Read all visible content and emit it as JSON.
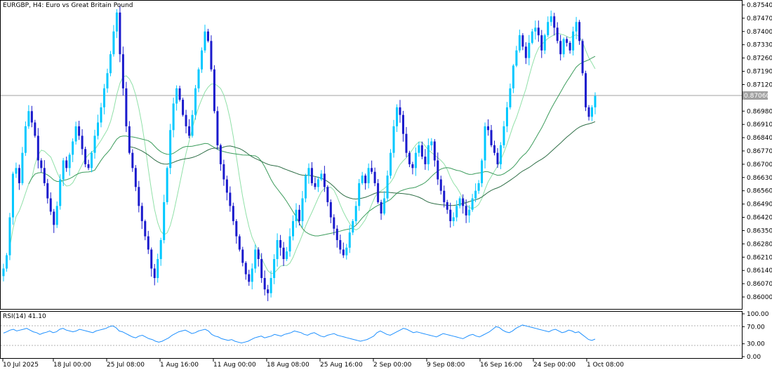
{
  "chart_title": "EURGBP, H4:  Euro vs Great Britain Pound",
  "rsi_label": "RSI(14) 41.10",
  "current_price_label": "0.87060",
  "price_axis": [
    "0.87540",
    "0.87470",
    "0.87400",
    "0.87330",
    "0.87260",
    "0.87190",
    "0.87120",
    "0.87060",
    "0.86980",
    "0.86910",
    "0.86840",
    "0.86770",
    "0.86700",
    "0.86630",
    "0.86560",
    "0.86490",
    "0.86420",
    "0.86350",
    "0.86280",
    "0.86210",
    "0.86140",
    "0.86070",
    "0.86000"
  ],
  "rsi_axis": [
    "100.00",
    "70.00",
    "30.00",
    "0.00"
  ],
  "time_axis": [
    "10 Jul 2025",
    "18 Jul 00:00",
    "25 Jul 08:00",
    "1 Aug 16:00",
    "11 Aug 00:00",
    "18 Aug 08:00",
    "25 Aug 16:00",
    "2 Sep 00:00",
    "9 Sep 08:00",
    "16 Sep 16:00",
    "24 Sep 00:00",
    "1 Oct 08:00"
  ],
  "colors": {
    "bull": "#00c8ff",
    "bear": "#1a1acc",
    "ma_fast": "#90e0a8",
    "ma_mid": "#3c9c5c",
    "ma_slow": "#2e6e46",
    "rsi_line": "#1e90ff",
    "grid_level": "#a0a0a0",
    "current_price_bg": "#a0a0a0"
  },
  "chart_data": {
    "type": "candlestick",
    "symbol": "EURGBP",
    "timeframe": "H4",
    "ylim": [
      0.8596,
      0.8756
    ],
    "current_price": 0.8706,
    "rsi": {
      "period": 14,
      "value": 41.1,
      "ylim": [
        0,
        100
      ],
      "levels": [
        30,
        70
      ]
    },
    "closes": [
      0.8615,
      0.8622,
      0.8642,
      0.8665,
      0.8668,
      0.866,
      0.8676,
      0.869,
      0.8698,
      0.8692,
      0.8685,
      0.8672,
      0.8668,
      0.866,
      0.8652,
      0.8645,
      0.8638,
      0.8648,
      0.8662,
      0.8672,
      0.8668,
      0.8675,
      0.8682,
      0.869,
      0.8685,
      0.8678,
      0.867,
      0.8668,
      0.8676,
      0.8685,
      0.8692,
      0.87,
      0.871,
      0.8718,
      0.8728,
      0.874,
      0.875,
      0.8728,
      0.871,
      0.869,
      0.8676,
      0.8668,
      0.8658,
      0.8648,
      0.864,
      0.8632,
      0.8625,
      0.8615,
      0.861,
      0.862,
      0.863,
      0.865,
      0.8668,
      0.8688,
      0.8702,
      0.871,
      0.8704,
      0.8696,
      0.869,
      0.8685,
      0.8696,
      0.871,
      0.872,
      0.873,
      0.874,
      0.8735,
      0.872,
      0.8698,
      0.868,
      0.867,
      0.8662,
      0.8655,
      0.8648,
      0.864,
      0.8632,
      0.8625,
      0.8618,
      0.8612,
      0.8608,
      0.8615,
      0.8625,
      0.862,
      0.861,
      0.8604,
      0.8602,
      0.861,
      0.862,
      0.863,
      0.8626,
      0.862,
      0.8624,
      0.8632,
      0.864,
      0.8646,
      0.864,
      0.8652,
      0.8664,
      0.8668,
      0.866,
      0.8658,
      0.8662,
      0.8665,
      0.8658,
      0.865,
      0.8642,
      0.8636,
      0.863,
      0.8625,
      0.8622,
      0.8626,
      0.8634,
      0.864,
      0.8648,
      0.866,
      0.8664,
      0.866,
      0.8668,
      0.8666,
      0.866,
      0.865,
      0.8644,
      0.8652,
      0.8664,
      0.8676,
      0.869,
      0.87,
      0.8696,
      0.8686,
      0.8676,
      0.867,
      0.8668,
      0.8676,
      0.868,
      0.8674,
      0.867,
      0.868,
      0.8682,
      0.8672,
      0.8662,
      0.8656,
      0.865,
      0.8646,
      0.864,
      0.8642,
      0.8648,
      0.8652,
      0.8648,
      0.8643,
      0.8646,
      0.8652,
      0.8656,
      0.866,
      0.8672,
      0.869,
      0.8688,
      0.868,
      0.8676,
      0.867,
      0.868,
      0.869,
      0.87,
      0.871,
      0.8722,
      0.873,
      0.8738,
      0.8732,
      0.8726,
      0.8734,
      0.874,
      0.8742,
      0.8738,
      0.873,
      0.8738,
      0.8745,
      0.8748,
      0.8742,
      0.8735,
      0.8728,
      0.8736,
      0.8734,
      0.873,
      0.874,
      0.8745,
      0.8735,
      0.8718,
      0.87,
      0.8695,
      0.87,
      0.8706
    ],
    "rsi_values": [
      55,
      58,
      62,
      64,
      60,
      62,
      64,
      66,
      62,
      58,
      56,
      52,
      55,
      57,
      60,
      56,
      58,
      64,
      66,
      62,
      60,
      58,
      60,
      64,
      62,
      60,
      58,
      56,
      60,
      62,
      64,
      66,
      70,
      72,
      68,
      60,
      58,
      54,
      50,
      46,
      44,
      48,
      50,
      46,
      42,
      40,
      36,
      34,
      36,
      40,
      44,
      50,
      54,
      58,
      60,
      62,
      58,
      54,
      56,
      60,
      62,
      64,
      60,
      52,
      48,
      46,
      42,
      40,
      38,
      40,
      36,
      34,
      32,
      34,
      36,
      40,
      44,
      46,
      48,
      44,
      46,
      48,
      52,
      50,
      48,
      52,
      54,
      56,
      60,
      58,
      56,
      52,
      50,
      54,
      56,
      52,
      48,
      46,
      50,
      52,
      54,
      50,
      48,
      46,
      44,
      42,
      40,
      38,
      36,
      38,
      40,
      44,
      48,
      56,
      60,
      56,
      52,
      50,
      54,
      58,
      62,
      66,
      64,
      60,
      56,
      58,
      56,
      54,
      52,
      50,
      48,
      46,
      50,
      54,
      52,
      50,
      48,
      46,
      44,
      42,
      46,
      50,
      52,
      48,
      46,
      50,
      54,
      58,
      64,
      70,
      68,
      62,
      58,
      56,
      60,
      66,
      70,
      74,
      72,
      70,
      68,
      66,
      64,
      62,
      60,
      58,
      62,
      64,
      60,
      56,
      58,
      62,
      60,
      56,
      58,
      52,
      46,
      40,
      38,
      41
    ]
  }
}
